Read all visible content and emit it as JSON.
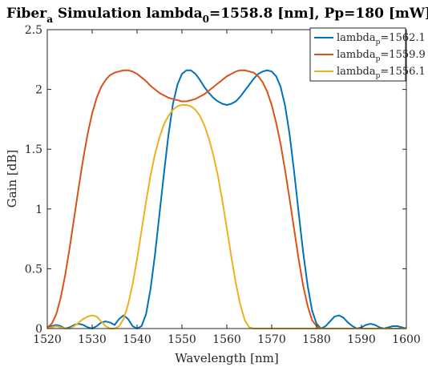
{
  "chart_data": {
    "type": "line",
    "title": {
      "prefix": "Fiber",
      "prefix_sub": "a",
      "mid": " Simulation lambda",
      "mid_sub": "0",
      "suffix": "=1558.8 [nm], Pp=180 [mW]"
    },
    "xlabel": "Wavelength [nm]",
    "ylabel": "Gain [dB]",
    "xlim": [
      1520,
      1600
    ],
    "ylim": [
      0,
      2.5
    ],
    "x_ticks": [
      1520,
      1530,
      1540,
      1550,
      1560,
      1570,
      1580,
      1590,
      1600
    ],
    "y_ticks": [
      0,
      0.5,
      1,
      1.5,
      2,
      2.5
    ],
    "y_tick_labels": [
      "0",
      "0.5",
      "1",
      "1.5",
      "2",
      "2.5"
    ],
    "grid": false,
    "legend_position": "top-right",
    "series": [
      {
        "name_main": "lambda",
        "name_sub": "p",
        "name_value": "=1562.1",
        "color": "#0072BD",
        "x": [
          1520,
          1521,
          1522,
          1523,
          1524,
          1525,
          1526,
          1527,
          1528,
          1529,
          1530,
          1531,
          1532,
          1533,
          1534,
          1535,
          1536,
          1537,
          1538,
          1539,
          1540,
          1541,
          1542,
          1543,
          1544,
          1545,
          1546,
          1547,
          1548,
          1549,
          1550,
          1551,
          1552,
          1553,
          1554,
          1555,
          1556,
          1557,
          1558,
          1559,
          1560,
          1561,
          1562,
          1563,
          1564,
          1565,
          1566,
          1567,
          1568,
          1569,
          1570,
          1571,
          1572,
          1573,
          1574,
          1575,
          1576,
          1577,
          1578,
          1579,
          1580,
          1581,
          1582,
          1583,
          1584,
          1585,
          1586,
          1587,
          1588,
          1589,
          1590,
          1591,
          1592,
          1593,
          1594,
          1595,
          1596,
          1597,
          1598,
          1599,
          1600
        ],
        "values": [
          0.01,
          0.02,
          0.03,
          0.02,
          0.0,
          0.01,
          0.03,
          0.04,
          0.03,
          0.01,
          0.0,
          0.02,
          0.05,
          0.06,
          0.05,
          0.03,
          0.08,
          0.11,
          0.08,
          0.02,
          0.0,
          0.02,
          0.12,
          0.33,
          0.62,
          0.96,
          1.3,
          1.62,
          1.88,
          2.04,
          2.13,
          2.16,
          2.16,
          2.13,
          2.08,
          2.02,
          1.97,
          1.93,
          1.9,
          1.88,
          1.87,
          1.88,
          1.9,
          1.94,
          1.99,
          2.04,
          2.09,
          2.13,
          2.15,
          2.16,
          2.15,
          2.11,
          2.02,
          1.86,
          1.62,
          1.31,
          0.97,
          0.64,
          0.36,
          0.15,
          0.04,
          0.0,
          0.02,
          0.06,
          0.1,
          0.11,
          0.09,
          0.05,
          0.02,
          0.0,
          0.01,
          0.03,
          0.04,
          0.03,
          0.01,
          0.0,
          0.01,
          0.02,
          0.02,
          0.01,
          0.0
        ]
      },
      {
        "name_main": "lambda",
        "name_sub": "p",
        "name_value": "=1559.9",
        "color": "#D95319",
        "x": [
          1520,
          1521,
          1522,
          1523,
          1524,
          1525,
          1526,
          1527,
          1528,
          1529,
          1530,
          1531,
          1532,
          1533,
          1534,
          1535,
          1536,
          1537,
          1538,
          1539,
          1540,
          1541,
          1542,
          1543,
          1544,
          1545,
          1546,
          1547,
          1548,
          1549,
          1550,
          1551,
          1552,
          1553,
          1554,
          1555,
          1556,
          1557,
          1558,
          1559,
          1560,
          1561,
          1562,
          1563,
          1564,
          1565,
          1566,
          1567,
          1568,
          1569,
          1570,
          1571,
          1572,
          1573,
          1574,
          1575,
          1576,
          1577,
          1578,
          1579,
          1580,
          1581,
          1582,
          1583,
          1584,
          1585,
          1586,
          1587,
          1588,
          1589,
          1590,
          1591,
          1592,
          1593,
          1594,
          1595,
          1596,
          1597,
          1598,
          1599,
          1600
        ],
        "values": [
          0.01,
          0.04,
          0.12,
          0.26,
          0.45,
          0.68,
          0.93,
          1.18,
          1.42,
          1.63,
          1.8,
          1.93,
          2.02,
          2.08,
          2.12,
          2.14,
          2.15,
          2.16,
          2.16,
          2.15,
          2.13,
          2.1,
          2.07,
          2.03,
          2.0,
          1.97,
          1.95,
          1.93,
          1.92,
          1.91,
          1.9,
          1.9,
          1.91,
          1.92,
          1.94,
          1.96,
          1.99,
          2.02,
          2.05,
          2.08,
          2.11,
          2.13,
          2.15,
          2.16,
          2.16,
          2.15,
          2.14,
          2.11,
          2.06,
          1.98,
          1.87,
          1.72,
          1.54,
          1.32,
          1.08,
          0.83,
          0.58,
          0.36,
          0.19,
          0.07,
          0.02,
          0.0,
          0.0,
          0.0,
          0.0,
          0.0,
          0.0,
          0.0,
          0.0,
          0.0,
          0.0,
          0.0,
          0.0,
          0.0,
          0.0,
          0.0,
          0.0,
          0.0,
          0.0,
          0.0,
          0.0
        ]
      },
      {
        "name_main": "lambda",
        "name_sub": "p",
        "name_value": "=1556.1",
        "color": "#EDB120",
        "x": [
          1520,
          1521,
          1522,
          1523,
          1524,
          1525,
          1526,
          1527,
          1528,
          1529,
          1530,
          1531,
          1532,
          1533,
          1534,
          1535,
          1536,
          1537,
          1538,
          1539,
          1540,
          1541,
          1542,
          1543,
          1544,
          1545,
          1546,
          1547,
          1548,
          1549,
          1550,
          1551,
          1552,
          1553,
          1554,
          1555,
          1556,
          1557,
          1558,
          1559,
          1560,
          1561,
          1562,
          1563,
          1564,
          1565,
          1566,
          1567,
          1568,
          1569,
          1570,
          1571,
          1572,
          1573,
          1574,
          1575,
          1576,
          1577,
          1578,
          1579,
          1580,
          1581,
          1582,
          1583,
          1584,
          1585,
          1586,
          1587,
          1588,
          1589,
          1590,
          1591,
          1592,
          1593,
          1594,
          1595,
          1596,
          1597,
          1598,
          1599,
          1600
        ],
        "values": [
          0.0,
          0.01,
          0.02,
          0.01,
          0.0,
          0.0,
          0.02,
          0.05,
          0.08,
          0.1,
          0.11,
          0.1,
          0.06,
          0.02,
          0.0,
          0.0,
          0.02,
          0.08,
          0.2,
          0.37,
          0.58,
          0.82,
          1.06,
          1.28,
          1.46,
          1.6,
          1.71,
          1.78,
          1.83,
          1.86,
          1.87,
          1.87,
          1.86,
          1.83,
          1.78,
          1.7,
          1.59,
          1.45,
          1.28,
          1.07,
          0.84,
          0.6,
          0.38,
          0.2,
          0.07,
          0.01,
          0.0,
          0.0,
          0.0,
          0.0,
          0.0,
          0.0,
          0.0,
          0.0,
          0.0,
          0.0,
          0.0,
          0.0,
          0.0,
          0.0,
          0.0,
          0.0,
          0.0,
          0.0,
          0.0,
          0.0,
          0.0,
          0.0,
          0.0,
          0.0,
          0.0,
          0.0,
          0.0,
          0.0,
          0.0,
          0.0,
          0.0,
          0.0,
          0.0,
          0.0,
          0.0
        ],
        "x_offset": 0
      }
    ]
  }
}
